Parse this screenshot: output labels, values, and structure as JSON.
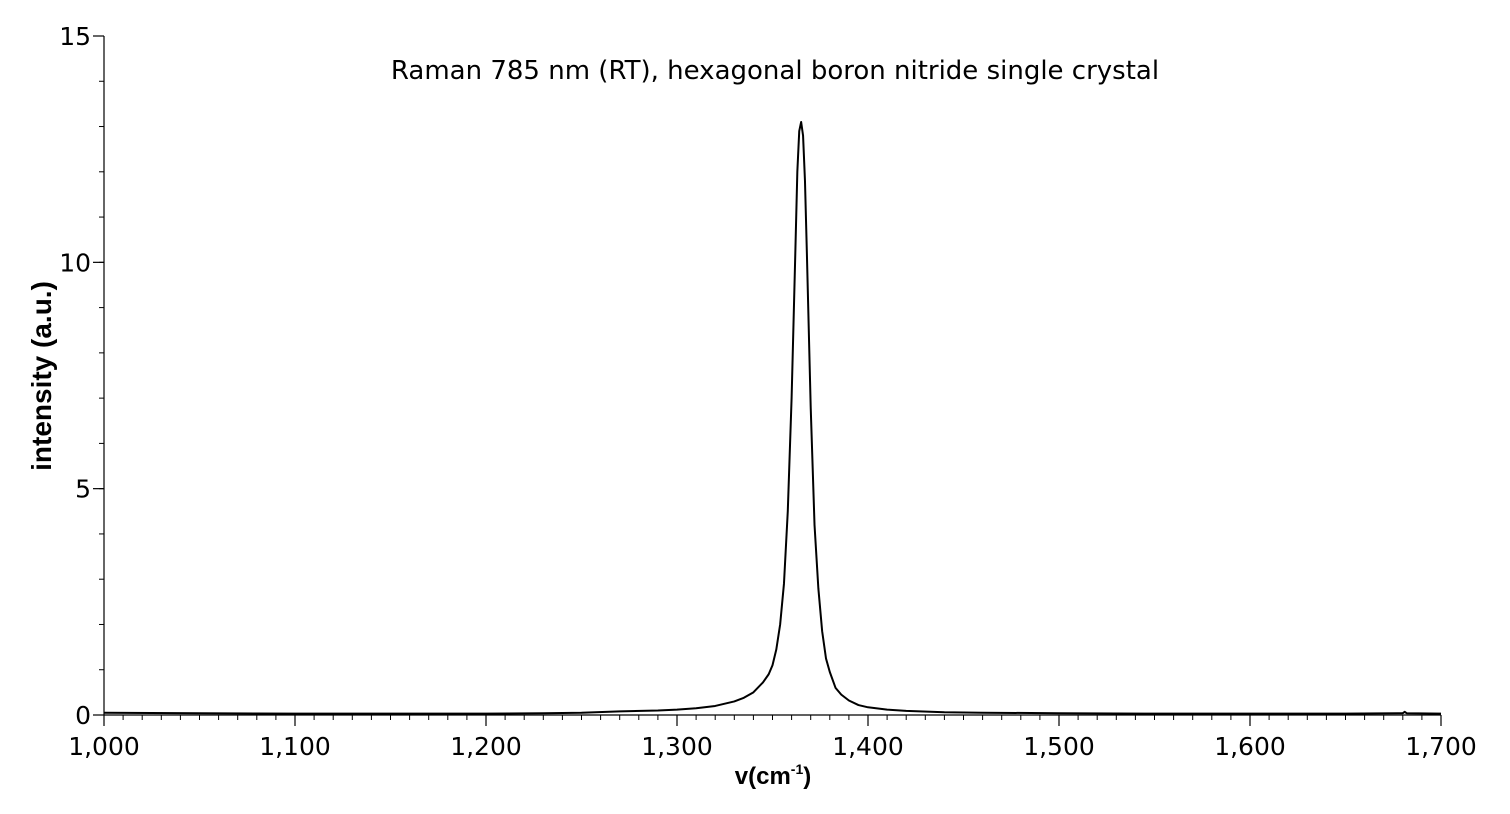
{
  "chart_data": {
    "type": "line",
    "title": "Raman 785 nm (RT), hexagonal boron nitride single crystal",
    "xlabel": "v(cm",
    "xlabel_superscript": "-1",
    "xlabel_suffix": ")",
    "ylabel": "intensity (a.u.)",
    "xlim": [
      1000,
      1700
    ],
    "ylim": [
      0,
      15
    ],
    "x_ticks": [
      1000,
      1100,
      1200,
      1300,
      1400,
      1500,
      1600,
      1700
    ],
    "x_tick_labels": [
      "1,000",
      "1,100",
      "1,200",
      "1,300",
      "1,400",
      "1,500",
      "1,600",
      "1,700"
    ],
    "y_ticks": [
      0,
      5,
      10,
      15
    ],
    "y_tick_labels": [
      "0",
      "5",
      "10",
      "15"
    ],
    "x_minor_step": 10,
    "y_minor_step": 1,
    "grid": false,
    "legend": "none",
    "line_color": "#000000",
    "series": [
      {
        "x": [
          1000,
          1050,
          1100,
          1150,
          1200,
          1230,
          1250,
          1270,
          1290,
          1300,
          1310,
          1320,
          1330,
          1335,
          1340,
          1345,
          1348,
          1350,
          1352,
          1354,
          1356,
          1358,
          1360,
          1362,
          1363,
          1364,
          1365,
          1366,
          1367,
          1368,
          1370,
          1372,
          1374,
          1376,
          1378,
          1380,
          1383,
          1386,
          1390,
          1395,
          1400,
          1410,
          1420,
          1440,
          1460,
          1500,
          1550,
          1600,
          1650,
          1680,
          1681,
          1682,
          1700
        ],
        "y": [
          0.05,
          0.04,
          0.03,
          0.03,
          0.03,
          0.04,
          0.05,
          0.08,
          0.1,
          0.12,
          0.15,
          0.2,
          0.3,
          0.38,
          0.5,
          0.72,
          0.9,
          1.1,
          1.45,
          2.0,
          2.9,
          4.5,
          7.0,
          10.3,
          12.0,
          12.9,
          13.1,
          12.8,
          11.8,
          10.2,
          6.8,
          4.2,
          2.8,
          1.85,
          1.25,
          0.95,
          0.6,
          0.45,
          0.32,
          0.22,
          0.17,
          0.12,
          0.09,
          0.06,
          0.05,
          0.04,
          0.03,
          0.03,
          0.03,
          0.04,
          0.07,
          0.04,
          0.03
        ]
      }
    ]
  }
}
